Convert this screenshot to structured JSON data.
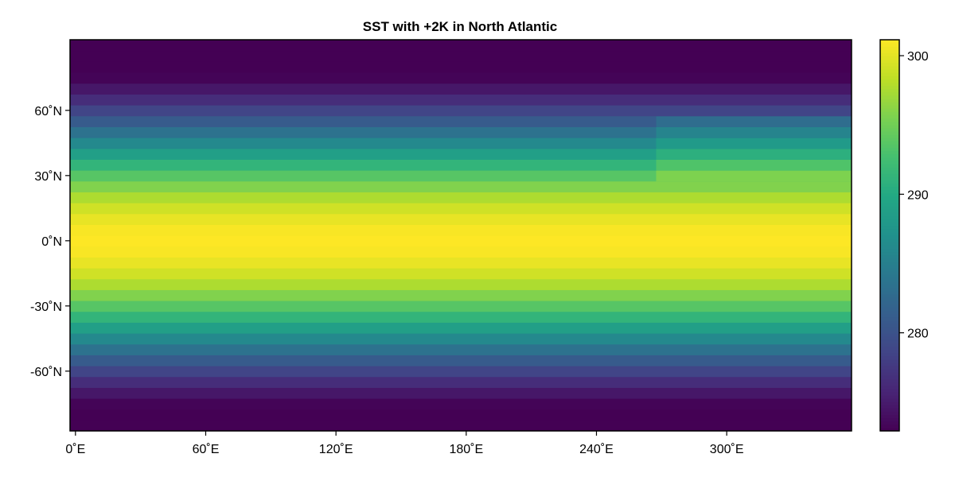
{
  "chart_data": {
    "type": "heatmap",
    "title": "SST with +2K in North Atlantic",
    "xlabel": "",
    "ylabel": "",
    "xlim": [
      -2.5,
      357.5
    ],
    "ylim": [
      -87.5,
      92.5
    ],
    "x_ticks": [
      0,
      60,
      120,
      180,
      240,
      300
    ],
    "x_tick_labels": [
      "0˚E",
      "60˚E",
      "120˚E",
      "180˚E",
      "240˚E",
      "300˚E"
    ],
    "y_ticks": [
      -60,
      -30,
      0,
      30,
      60
    ],
    "y_tick_labels": [
      "-60˚N",
      "-30˚N",
      "0˚N",
      "30˚N",
      "60˚N"
    ],
    "grid": false,
    "cell_width_deg": 5,
    "lat_start": -85,
    "lat_step": 5,
    "lat_count": 36,
    "base_field": "SST(lat) = 271.15 + 30 * cos(lat)^2",
    "anomaly": {
      "value": 2,
      "lon_min": 270,
      "lon_max": 355,
      "lat_min": 30,
      "lat_max": 55,
      "region": "North Atlantic"
    },
    "colormap": "viridis",
    "colorbar": {
      "limits": [
        272.92,
        301.15
      ],
      "ticks": [
        280,
        290,
        300
      ],
      "tick_labels": [
        "280",
        "290",
        "300"
      ],
      "position": "right"
    }
  }
}
